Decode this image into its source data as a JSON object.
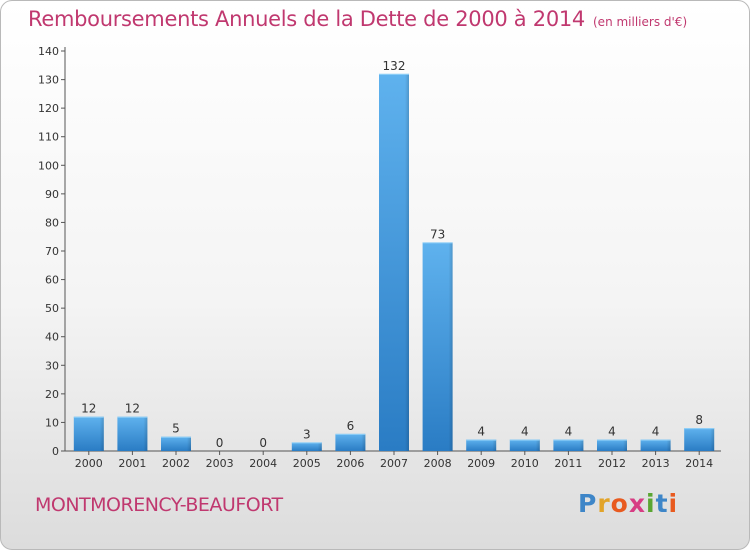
{
  "title": "Remboursements Annuels de la Dette de 2000 à 2014",
  "unit": "(en milliers d'€)",
  "commune": "MONTMORENCY-BEAUFORT",
  "logo": [
    "P",
    "r",
    "o",
    "x",
    "i",
    "t",
    "i"
  ],
  "colors": {
    "bar": "#3b8fd6",
    "title": "#c0386f"
  },
  "chart_data": {
    "type": "bar",
    "categories": [
      "2000",
      "2001",
      "2002",
      "2003",
      "2004",
      "2005",
      "2006",
      "2007",
      "2008",
      "2009",
      "2010",
      "2011",
      "2012",
      "2013",
      "2014"
    ],
    "values": [
      12,
      12,
      5,
      0,
      0,
      3,
      6,
      132,
      73,
      4,
      4,
      4,
      4,
      4,
      8
    ],
    "ylim": [
      0,
      140
    ],
    "yticks": [
      0,
      10,
      20,
      30,
      40,
      50,
      60,
      70,
      80,
      90,
      100,
      110,
      120,
      130,
      140
    ],
    "grid": false
  }
}
